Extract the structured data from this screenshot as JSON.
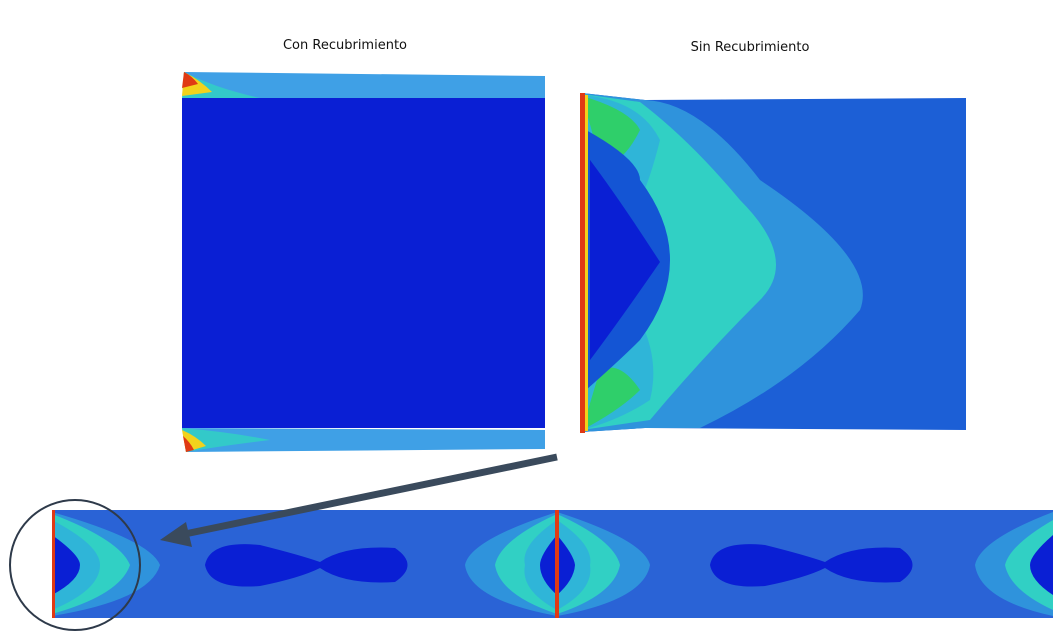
{
  "labels": [
    "Con Recubrimiento",
    "Sin Recubrimiento"
  ]
}
